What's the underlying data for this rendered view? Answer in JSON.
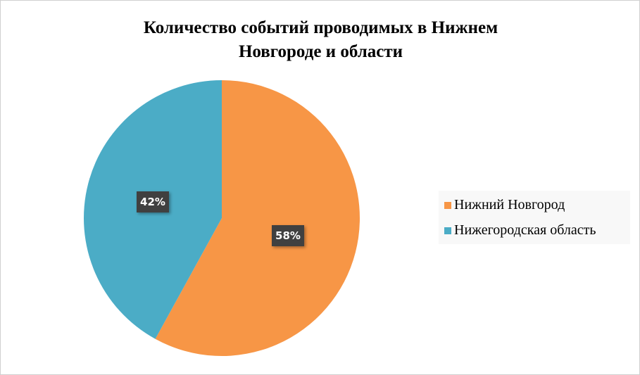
{
  "chart_data": {
    "type": "pie",
    "title": "Количество событий проводимых в Нижнем Новгороде и области",
    "title_lines": [
      "Количество событий проводимых в Нижнем",
      "Новгороде и области"
    ],
    "categories": [
      "Нижний Новгород",
      "Нижегородская область"
    ],
    "values": [
      58,
      42
    ],
    "data_labels": [
      "58%",
      "42%"
    ],
    "colors": [
      "#F79646",
      "#4BACC6"
    ],
    "start_angle": "top, clockwise",
    "legend_position": "right"
  }
}
